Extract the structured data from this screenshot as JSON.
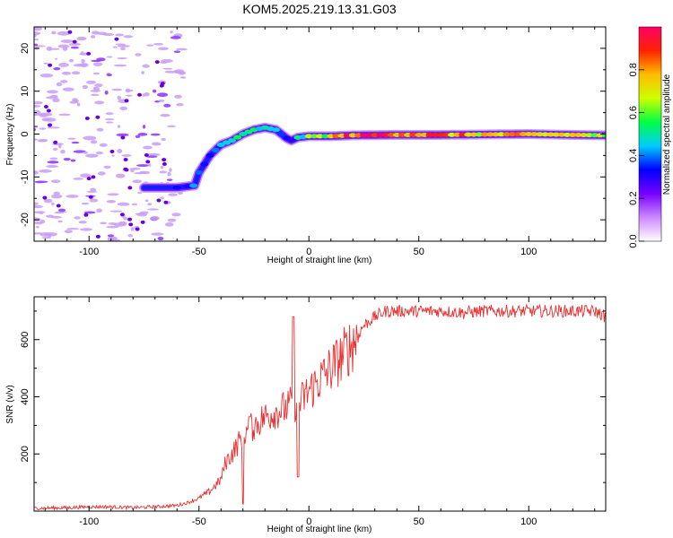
{
  "title": "KOM5.2025.219.13.31.G03",
  "chart_data": [
    {
      "type": "heatmap",
      "xlabel": "Height of straight line (km)",
      "ylabel": "Frequency (Hz)",
      "xlim": [
        -125,
        135
      ],
      "ylim": [
        -25,
        25
      ],
      "x_ticks": [
        -100,
        -50,
        0,
        50,
        100
      ],
      "y_ticks": [
        -20,
        -10,
        0,
        10,
        20
      ],
      "colorbar": {
        "label": "Normalized spectral amplitude",
        "range": [
          0.0,
          1.0
        ],
        "ticks": [
          0.0,
          0.2,
          0.4,
          0.6,
          0.8
        ],
        "tick_labels": [
          "0.0",
          "0.2",
          "0.4",
          "0.6",
          "0.8"
        ],
        "colors": [
          "#ffffff",
          "#cc88ff",
          "#7700ff",
          "#0000ff",
          "#00ccff",
          "#00ff44",
          "#ccff00",
          "#ffbb00",
          "#ff2200",
          "#ff0066"
        ]
      },
      "ridge": {
        "x": [
          -75,
          -60,
          -52,
          -50,
          -45,
          -40,
          -35,
          -30,
          -25,
          -20,
          -15,
          -10,
          -8,
          -5,
          0,
          10,
          20,
          40,
          60,
          80,
          100,
          120,
          135
        ],
        "freq": [
          -12.5,
          -12.5,
          -12,
          -9,
          -5,
          -2.5,
          -1.5,
          0,
          1,
          1.5,
          1,
          -1,
          -1.5,
          -0.8,
          -0.5,
          -0.5,
          -0.3,
          -0.2,
          -0.2,
          -0.1,
          0,
          -0.2,
          -0.3
        ],
        "amplitude": [
          0.18,
          0.3,
          0.4,
          0.35,
          0.3,
          0.45,
          0.5,
          0.45,
          0.5,
          0.45,
          0.4,
          0.35,
          0.3,
          0.45,
          0.55,
          0.7,
          0.9,
          0.95,
          0.8,
          0.75,
          0.7,
          0.75,
          0.6
        ]
      }
    },
    {
      "type": "line",
      "xlabel": "Height of straight line (km)",
      "ylabel": "SNR (v/v)",
      "xlim": [
        -125,
        135
      ],
      "ylim": [
        0,
        750
      ],
      "x_ticks": [
        -100,
        -50,
        0,
        50,
        100
      ],
      "y_ticks": [
        200,
        400,
        600
      ],
      "color": "#e83030",
      "series": [
        {
          "name": "SNR",
          "x": [
            -125,
            -110,
            -100,
            -90,
            -80,
            -70,
            -60,
            -55,
            -50,
            -45,
            -40,
            -38,
            -35,
            -32,
            -30,
            -28,
            -25,
            -20,
            -15,
            -10,
            -7,
            -5,
            0,
            5,
            10,
            15,
            20,
            25,
            30,
            35,
            40,
            50,
            60,
            70,
            80,
            90,
            100,
            110,
            120,
            130,
            135
          ],
          "y": [
            10,
            12,
            15,
            15,
            12,
            15,
            20,
            30,
            45,
            70,
            110,
            170,
            200,
            240,
            270,
            280,
            300,
            330,
            350,
            360,
            380,
            370,
            420,
            460,
            500,
            540,
            590,
            650,
            680,
            700,
            700,
            700,
            700,
            695,
            700,
            700,
            700,
            700,
            700,
            700,
            680
          ]
        }
      ],
      "spikes": [
        {
          "x": -30,
          "y": 25
        },
        {
          "x": -27,
          "y": 330
        },
        {
          "x": -7,
          "y": 680
        },
        {
          "x": -5,
          "y": 120
        }
      ]
    }
  ]
}
